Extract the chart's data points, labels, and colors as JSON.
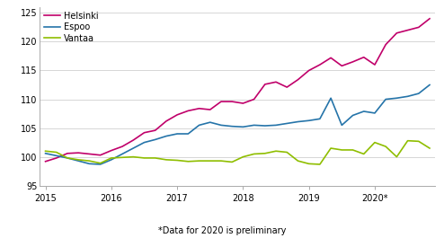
{
  "footnote": "*Data for 2020 is preliminary",
  "legend": [
    "Helsinki",
    "Espoo",
    "Vantaa"
  ],
  "colors": [
    "#c0006a",
    "#2574a9",
    "#8fbe00"
  ],
  "ylim": [
    95,
    126
  ],
  "yticks": [
    95,
    100,
    105,
    110,
    115,
    120,
    125
  ],
  "xtick_labels": [
    "2015",
    "2016",
    "2017",
    "2018",
    "2019",
    "2020*"
  ],
  "helsinki": [
    99.2,
    99.8,
    100.6,
    100.7,
    100.5,
    100.3,
    101.1,
    101.8,
    102.9,
    104.2,
    104.6,
    106.2,
    107.3,
    108.0,
    108.4,
    108.2,
    109.6,
    109.6,
    109.3,
    110.0,
    112.6,
    113.0,
    112.1,
    113.4,
    115.0,
    116.0,
    117.2,
    115.8,
    116.5,
    117.3,
    116.0,
    119.5,
    121.5,
    122.0,
    122.5,
    124.0
  ],
  "espoo": [
    100.6,
    100.2,
    99.8,
    99.3,
    98.8,
    98.7,
    99.5,
    100.5,
    101.5,
    102.5,
    103.0,
    103.6,
    104.0,
    104.0,
    105.5,
    106.0,
    105.5,
    105.3,
    105.2,
    105.5,
    105.4,
    105.5,
    105.8,
    106.1,
    106.3,
    106.6,
    110.2,
    105.5,
    107.2,
    107.9,
    107.6,
    110.0,
    110.2,
    110.5,
    111.0,
    112.5
  ],
  "vantaa": [
    101.0,
    100.8,
    99.8,
    99.5,
    99.3,
    98.9,
    99.8,
    99.9,
    100.0,
    99.8,
    99.8,
    99.5,
    99.4,
    99.2,
    99.3,
    99.3,
    99.3,
    99.1,
    100.0,
    100.5,
    100.6,
    101.0,
    100.8,
    99.3,
    98.8,
    98.7,
    101.5,
    101.2,
    101.2,
    100.5,
    102.5,
    101.8,
    100.0,
    102.8,
    102.7,
    101.5
  ]
}
